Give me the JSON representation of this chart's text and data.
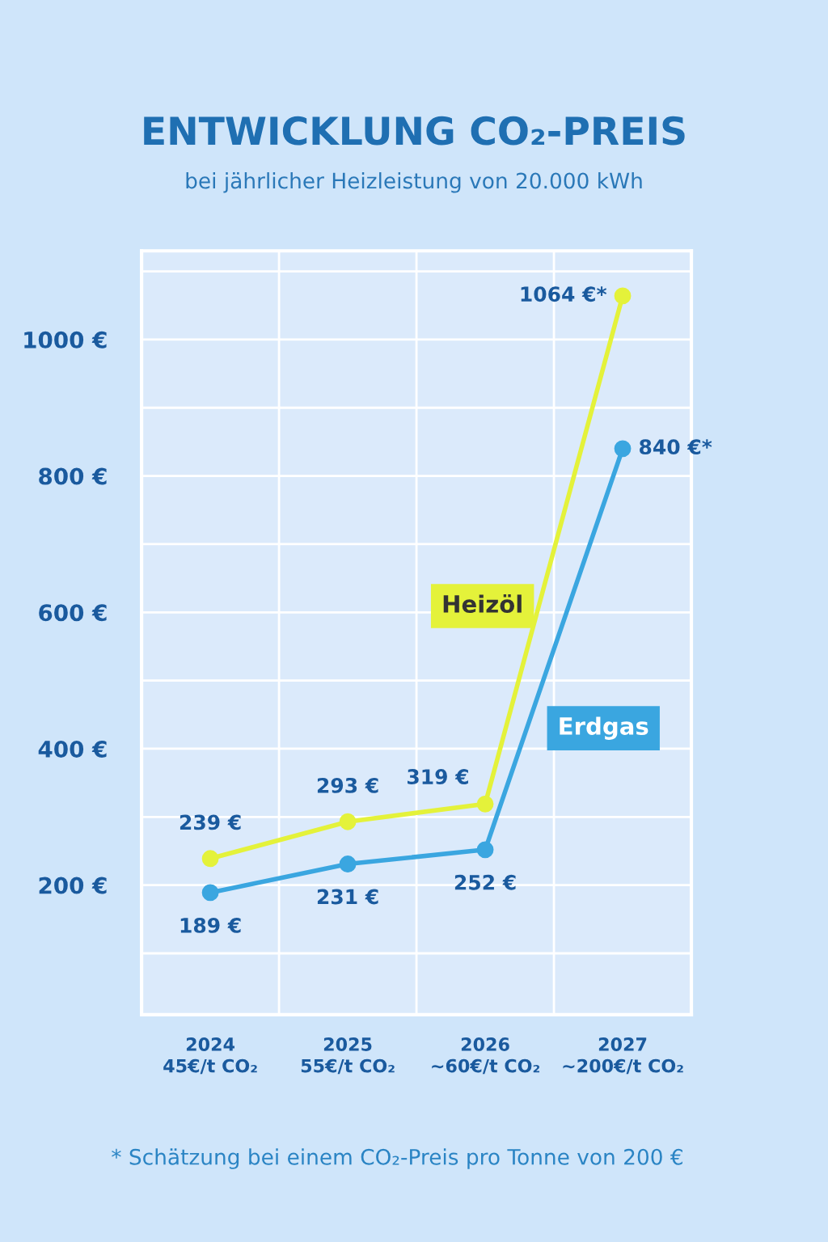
{
  "chart_data": {
    "type": "line",
    "title": "ENTWICKLUNG CO₂-PREIS",
    "subtitle": "bei jährlicher Heizleistung von 20.000 kWh",
    "categories": [
      "2024\n45€/t CO₂",
      "2025\n55€/t CO₂",
      "2026\n~60€/t CO₂",
      "2027\n~200€/t CO₂"
    ],
    "series": [
      {
        "name": "Heizöl",
        "color": "#e4f23a",
        "values": [
          239,
          293,
          319,
          1064
        ],
        "value_labels": [
          "239 €",
          "293 €",
          "319 €",
          "1064 €*"
        ]
      },
      {
        "name": "Erdgas",
        "color": "#3aa6e0",
        "values": [
          189,
          231,
          252,
          840
        ],
        "value_labels": [
          "189 €",
          "231 €",
          "252 €",
          "840 €*"
        ]
      }
    ],
    "ylim": [
      10,
      1130
    ],
    "yticks": [
      {
        "value": 100,
        "label": null
      },
      {
        "value": 200,
        "label": "200 €"
      },
      {
        "value": 300,
        "label": null
      },
      {
        "value": 400,
        "label": "400 €"
      },
      {
        "value": 500,
        "label": null
      },
      {
        "value": 600,
        "label": "600 €"
      },
      {
        "value": 700,
        "label": null
      },
      {
        "value": 800,
        "label": "800 €"
      },
      {
        "value": 900,
        "label": null
      },
      {
        "value": 1000,
        "label": "1000 €"
      },
      {
        "value": 1100,
        "label": null
      }
    ],
    "grid": true,
    "marker": "circle",
    "line_style": "solid",
    "annotations": [
      "* Schätzung bei einem CO₂-Preis pro Tonne von 200 €"
    ]
  }
}
